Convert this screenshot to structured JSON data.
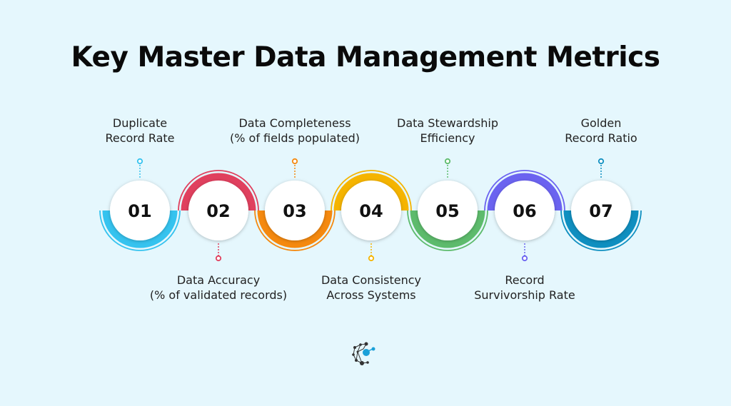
{
  "title": "Key Master Data Management Metrics",
  "steps": [
    {
      "number": "01",
      "label_line1": "Duplicate",
      "label_line2": "Record Rate",
      "position": "top",
      "color": "#35c3ef"
    },
    {
      "number": "02",
      "label_line1": "Data Accuracy",
      "label_line2": "(% of validated records)",
      "position": "bottom",
      "color": "#e0405e"
    },
    {
      "number": "03",
      "label_line1": "Data Completeness",
      "label_line2": "(% of fields populated)",
      "position": "top",
      "color": "#f5890f"
    },
    {
      "number": "04",
      "label_line1": "Data Consistency",
      "label_line2": "Across Systems",
      "position": "bottom",
      "color": "#f5b400"
    },
    {
      "number": "05",
      "label_line1": "Data Stewardship",
      "label_line2": "Efficiency",
      "position": "top",
      "color": "#5dbb6c"
    },
    {
      "number": "06",
      "label_line1": "Record",
      "label_line2": "Survivorship Rate",
      "position": "bottom",
      "color": "#6b63f0"
    },
    {
      "number": "07",
      "label_line1": "Golden",
      "label_line2": "Record Ratio",
      "position": "top",
      "color": "#0f8fc0"
    }
  ],
  "logo": {
    "icon": "network-nodes-logo",
    "accent": "#1aa0d8"
  }
}
